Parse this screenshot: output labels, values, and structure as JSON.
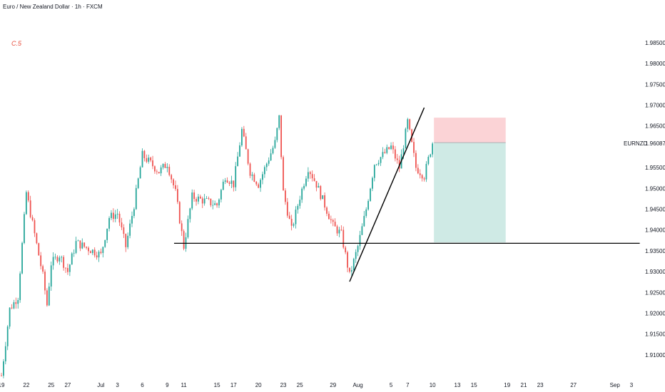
{
  "header": {
    "title": "Euro / New Zealand Dollar · 1h · FXCM"
  },
  "annotation": {
    "label": "C.5",
    "color": "#e74c3c"
  },
  "colors": {
    "up": "#26a69a",
    "down": "#ef5350",
    "stop_zone": "#fbd3d6",
    "target_zone": "#cfeae5",
    "line": "#000000"
  },
  "chart_data": {
    "type": "candlestick",
    "symbol": "EURNZD",
    "timeframe": "1h",
    "last_price_label": "1.96087",
    "y_axis": {
      "ticks": [
        "1.98500",
        "1.98000",
        "1.97500",
        "1.97000",
        "1.96500",
        "1.95500",
        "1.95000",
        "1.94500",
        "1.94000",
        "1.93500",
        "1.93000",
        "1.92500",
        "1.92000",
        "1.91500",
        "1.91000"
      ],
      "ylim": [
        1.9045,
        1.9915
      ]
    },
    "x_axis": {
      "ticks": [
        "19",
        "22",
        "25",
        "27",
        "Jul",
        "3",
        "6",
        "9",
        "11",
        "15",
        "17",
        "20",
        "23",
        "25",
        "29",
        "Aug",
        "5",
        "7",
        "10",
        "13",
        "15",
        "19",
        "21",
        "23",
        "27",
        "Sep",
        "3"
      ]
    },
    "price_path": [
      {
        "x": "Jun 19",
        "y": 1.905
      },
      {
        "x": "Jun 20",
        "y": 1.921
      },
      {
        "x": "Jun 21",
        "y": 1.924
      },
      {
        "x": "Jun 22",
        "y": 1.949
      },
      {
        "x": "Jun 24",
        "y": 1.929
      },
      {
        "x": "Jun 24",
        "y": 1.922
      },
      {
        "x": "Jun 25",
        "y": 1.932
      },
      {
        "x": "Jun 26",
        "y": 1.934
      },
      {
        "x": "Jun 27",
        "y": 1.93
      },
      {
        "x": "Jun 28",
        "y": 1.937
      },
      {
        "x": "Jul 1",
        "y": 1.934
      },
      {
        "x": "Jul 2",
        "y": 1.943
      },
      {
        "x": "Jul 3",
        "y": 1.944
      },
      {
        "x": "Jul 4",
        "y": 1.936
      },
      {
        "x": "Jul 5",
        "y": 1.946
      },
      {
        "x": "Jul 6",
        "y": 1.958
      },
      {
        "x": "Jul 8",
        "y": 1.954
      },
      {
        "x": "Jul 9",
        "y": 1.956
      },
      {
        "x": "Jul 10",
        "y": 1.949
      },
      {
        "x": "Jul 11",
        "y": 1.936
      },
      {
        "x": "Jul 12",
        "y": 1.948
      },
      {
        "x": "Jul 15",
        "y": 1.946
      },
      {
        "x": "Jul 16",
        "y": 1.953
      },
      {
        "x": "Jul 17",
        "y": 1.951
      },
      {
        "x": "Jul 18",
        "y": 1.964
      },
      {
        "x": "Jul 19",
        "y": 1.954
      },
      {
        "x": "Jul 20",
        "y": 1.951
      },
      {
        "x": "Jul 22",
        "y": 1.961
      },
      {
        "x": "Jul 22",
        "y": 1.967
      },
      {
        "x": "Jul 23",
        "y": 1.949
      },
      {
        "x": "Jul 24",
        "y": 1.94
      },
      {
        "x": "Jul 25",
        "y": 1.948
      },
      {
        "x": "Jul 26",
        "y": 1.955
      },
      {
        "x": "Jul 27",
        "y": 1.951
      },
      {
        "x": "Jul 29",
        "y": 1.941
      },
      {
        "x": "Jul 30",
        "y": 1.939
      },
      {
        "x": "Jul 31",
        "y": 1.929
      },
      {
        "x": "Aug 1",
        "y": 1.936
      },
      {
        "x": "Aug 2",
        "y": 1.945
      },
      {
        "x": "Aug 3",
        "y": 1.956
      },
      {
        "x": "Aug 5",
        "y": 1.96
      },
      {
        "x": "Aug 6",
        "y": 1.955
      },
      {
        "x": "Aug 7",
        "y": 1.966
      },
      {
        "x": "Aug 8",
        "y": 1.955
      },
      {
        "x": "Aug 9",
        "y": 1.953
      },
      {
        "x": "Aug 10",
        "y": 1.961
      }
    ],
    "horizontal_line": {
      "price": 1.9368,
      "from": "Jul 10",
      "to": "Sep 4"
    },
    "trendline": {
      "start": {
        "x": "Jul 31",
        "y": 1.9276
      },
      "end": {
        "x": "Aug 9",
        "y": 1.9694
      }
    },
    "position": {
      "side": "short",
      "entry": 1.961,
      "stop": 1.967,
      "target": 1.937,
      "from": "Aug 10",
      "to": "Aug 19"
    },
    "grid": false
  }
}
